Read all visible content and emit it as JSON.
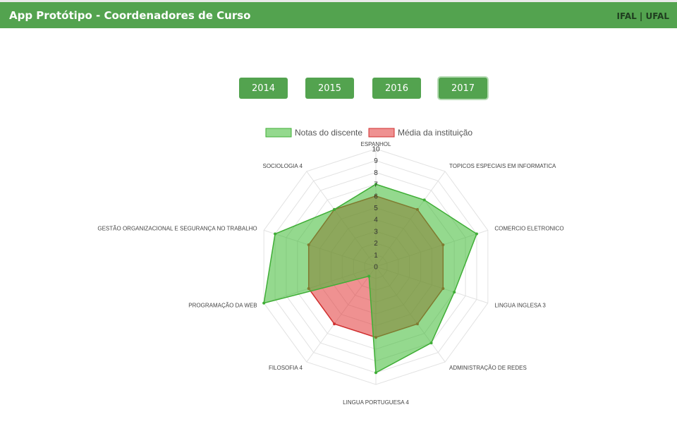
{
  "header": {
    "title": "App Protótipo - Coordenadores de Curso",
    "brand": "IFAL | UFAL"
  },
  "years": {
    "items": [
      "2014",
      "2015",
      "2016",
      "2017"
    ],
    "selected": "2017"
  },
  "colors": {
    "header_bg": "#53a34f",
    "series_student_fill": "rgba(60,185,50,0.55)",
    "series_student_line": "#3fae36",
    "series_institution_fill": "rgba(226,55,55,0.55)",
    "series_institution_line": "#d03030"
  },
  "chart_data": {
    "type": "radar",
    "categories": [
      "ESPANHOL",
      "TOPICOS ESPECIAIS EM INFORMATICA",
      "COMERCIO ELETRONICO",
      "LINGUA INGLESA 3",
      "ADMINISTRAÇÃO DE REDES",
      "LINGUA PORTUGUESA 4",
      "FILOSOFIA 4",
      "PROGRAMAÇÃO DA WEB",
      "GESTÃO ORGANIZACIONAL E SEGURANÇA NO TRABALHO",
      "SOCIOLOGIA 4"
    ],
    "series": [
      {
        "name": "Notas do discente",
        "values": [
          7,
          7,
          9,
          7,
          8,
          9,
          1,
          10,
          9,
          6
        ]
      },
      {
        "name": "Média da instituição",
        "values": [
          6,
          6,
          6,
          6,
          6,
          6,
          6,
          6,
          6,
          6
        ]
      }
    ],
    "rlim": [
      0,
      10
    ],
    "ticks": [
      "0",
      "1",
      "2",
      "3",
      "4",
      "5",
      "6",
      "7",
      "8",
      "9",
      "10"
    ],
    "legend_position": "top"
  }
}
